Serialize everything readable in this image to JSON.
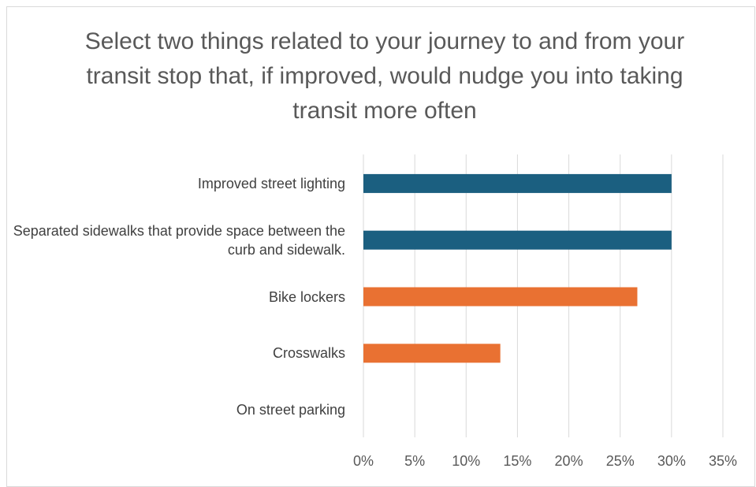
{
  "chart_data": {
    "type": "hbar",
    "title": "Select two things related to your journey to and from your transit stop that, if improved, would nudge you into taking transit more often",
    "categories": [
      "Improved street lighting",
      "Separated sidewalks that provide space between the curb and sidewalk.",
      "Bike lockers",
      "Crosswalks",
      "On street parking"
    ],
    "values": [
      30,
      30,
      26.67,
      13.33,
      0
    ],
    "colors": [
      "#1b5f80",
      "#1b5f80",
      "#e97132",
      "#e97132",
      "#e97132"
    ],
    "xlim": [
      0,
      35
    ],
    "xticks": [
      {
        "value": 0,
        "label": "0%"
      },
      {
        "value": 5,
        "label": "5%"
      },
      {
        "value": 10,
        "label": "10%"
      },
      {
        "value": 15,
        "label": "15%"
      },
      {
        "value": 20,
        "label": "20%"
      },
      {
        "value": 25,
        "label": "25%"
      },
      {
        "value": 30,
        "label": "30%"
      },
      {
        "value": 35,
        "label": "35%"
      }
    ],
    "grid": true
  }
}
